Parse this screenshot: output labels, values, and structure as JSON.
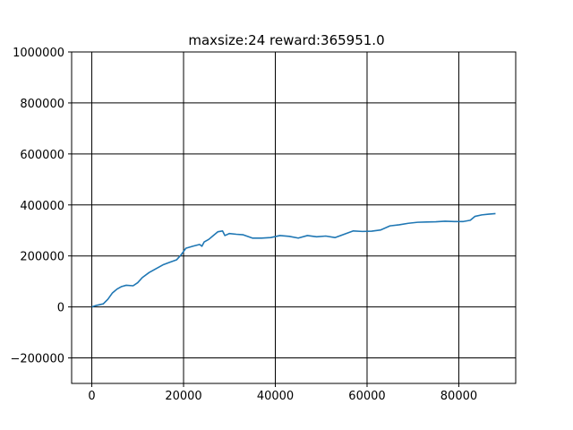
{
  "chart_data": {
    "type": "line",
    "title": "maxsize:24 reward:365951.0",
    "xlabel": "",
    "ylabel": "",
    "xlim": [
      -4400,
      92400
    ],
    "ylim": [
      -300000,
      1000000
    ],
    "grid": true,
    "x_ticks": [
      0,
      20000,
      40000,
      60000,
      80000
    ],
    "x_tick_labels": [
      "0",
      "20000",
      "40000",
      "60000",
      "80000"
    ],
    "y_ticks": [
      -200000,
      0,
      200000,
      400000,
      600000,
      800000,
      1000000
    ],
    "y_tick_labels": [
      "−200000",
      "0",
      "200000",
      "400000",
      "600000",
      "800000",
      "1000000"
    ],
    "series": [
      {
        "color": "#1f77b4",
        "x": [
          0,
          1000,
          2500,
          3500,
          4500,
          5500,
          6500,
          7500,
          9000,
          10000,
          11000,
          12500,
          14000,
          15500,
          17000,
          18500,
          19500,
          20500,
          22000,
          23500,
          24000,
          24500,
          25500,
          26500,
          27500,
          28500,
          29000,
          30000,
          31500,
          33000,
          35000,
          37000,
          39000,
          41000,
          43000,
          45000,
          47000,
          49000,
          51000,
          53000,
          55000,
          57000,
          59000,
          61000,
          63000,
          65000,
          67000,
          69000,
          71000,
          73000,
          75000,
          77000,
          79000,
          81000,
          82500,
          83500,
          85000,
          86500,
          88000
        ],
        "y": [
          0,
          6000,
          12000,
          30000,
          55000,
          70000,
          80000,
          85000,
          83000,
          95000,
          115000,
          135000,
          150000,
          165000,
          175000,
          185000,
          205000,
          230000,
          238000,
          245000,
          238000,
          255000,
          265000,
          280000,
          295000,
          298000,
          280000,
          288000,
          285000,
          283000,
          270000,
          270000,
          272000,
          280000,
          277000,
          270000,
          280000,
          275000,
          278000,
          272000,
          285000,
          298000,
          296000,
          297000,
          302000,
          318000,
          322000,
          328000,
          332000,
          333000,
          334000,
          336000,
          335000,
          335000,
          340000,
          355000,
          361000,
          364000,
          366000
        ]
      }
    ]
  }
}
